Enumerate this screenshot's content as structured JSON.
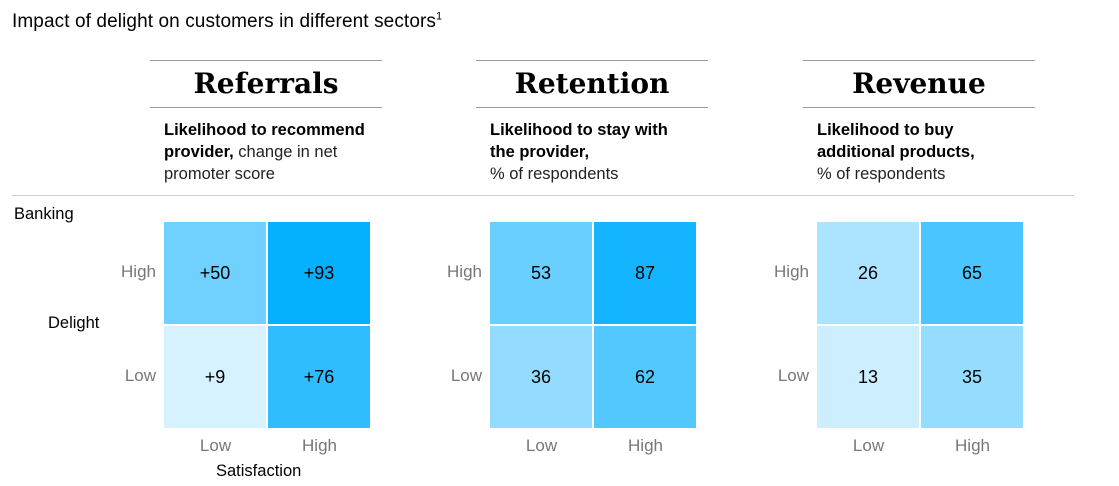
{
  "title": "Impact of delight on customers in different sectors",
  "title_footnote": "1",
  "sector": "Banking",
  "chart_data": [
    {
      "type": "heatmap",
      "title": "Referrals",
      "subtitle_bold": "Likelihood to recommend provider,",
      "subtitle_rest": " change in net promoter score",
      "xlabel": "Satisfaction",
      "ylabel": "Delight",
      "x": [
        "Low",
        "High"
      ],
      "y": [
        "High",
        "Low"
      ],
      "values": [
        [
          "+50",
          "+93"
        ],
        [
          "+9",
          "+76"
        ]
      ],
      "numeric": [
        [
          50,
          93
        ],
        [
          9,
          76
        ]
      ]
    },
    {
      "type": "heatmap",
      "title": "Retention",
      "subtitle_bold": "Likelihood to stay with the provider,",
      "subtitle_rest": " % of respondents",
      "xlabel": "",
      "ylabel": "",
      "x": [
        "Low",
        "High"
      ],
      "y": [
        "High",
        "Low"
      ],
      "values": [
        [
          "53",
          "87"
        ],
        [
          "36",
          "62"
        ]
      ],
      "numeric": [
        [
          53,
          87
        ],
        [
          36,
          62
        ]
      ]
    },
    {
      "type": "heatmap",
      "title": "Revenue",
      "subtitle_bold": "Likelihood to buy additional products,",
      "subtitle_rest": " % of respondents",
      "xlabel": "",
      "ylabel": "",
      "x": [
        "Low",
        "High"
      ],
      "y": [
        "High",
        "Low"
      ],
      "values": [
        [
          "26",
          "65"
        ],
        [
          "13",
          "35"
        ]
      ],
      "numeric": [
        [
          26,
          65
        ],
        [
          13,
          35
        ]
      ]
    }
  ]
}
